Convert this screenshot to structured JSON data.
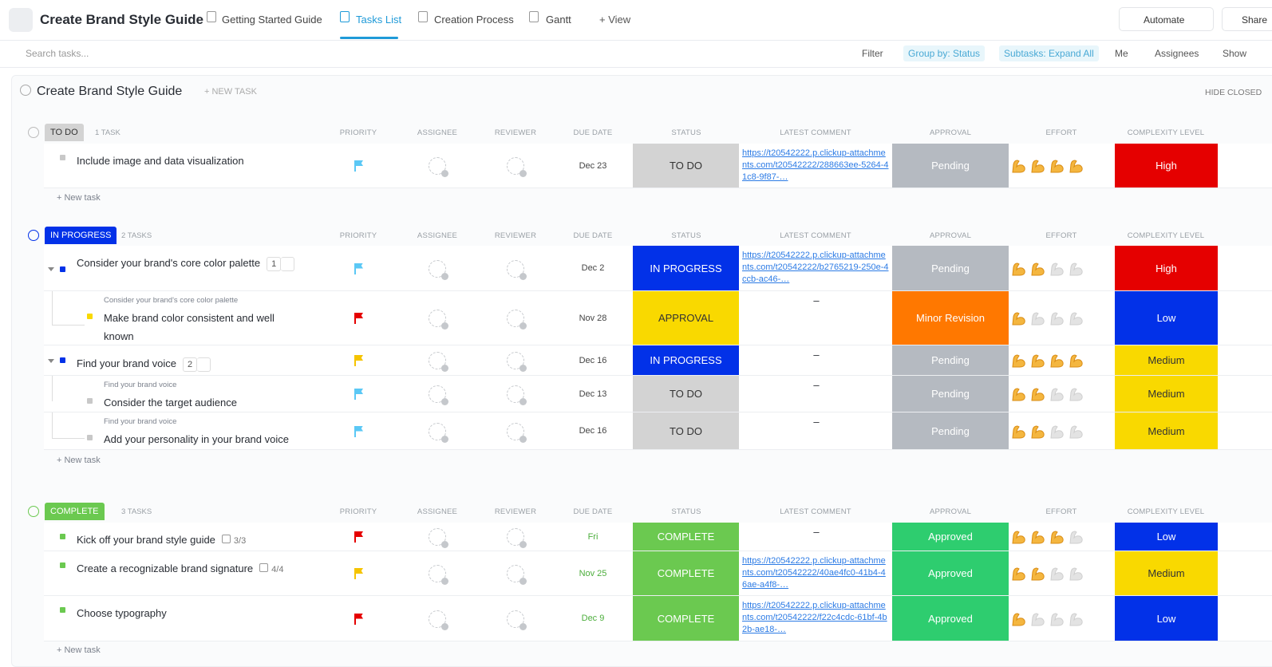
{
  "header": {
    "title": "Create Brand Style Guide",
    "tabs": [
      "Getting Started Guide",
      "Tasks List",
      "Creation Process",
      "Gantt"
    ],
    "add_view": "+ View",
    "automate": "Automate",
    "share": "Share"
  },
  "toolbar": {
    "search": "Search tasks...",
    "filter": "Filter",
    "group_by": "Group by: Status",
    "subtasks": "Subtasks: Expand All",
    "me": "Me",
    "assignees": "Assignees",
    "show": "Show"
  },
  "list": {
    "title": "Create Brand Style Guide",
    "new_task": "+ NEW TASK",
    "hide_closed": "HIDE CLOSED"
  },
  "columns": [
    "PRIORITY",
    "ASSIGNEE",
    "REVIEWER",
    "DUE DATE",
    "STATUS",
    "LATEST COMMENT",
    "APPROVAL",
    "EFFORT",
    "COMPLEXITY LEVEL"
  ],
  "groups": [
    {
      "status": "TO DO",
      "color": "#d3d3d3",
      "text_color": "#333333",
      "count": "1 TASK",
      "new_task": "+ New task",
      "tasks": [
        {
          "name": "Include image and data visualization",
          "flag": "#5bc8f5",
          "due": "Dec 23",
          "status": "TO DO",
          "status_color": "#d3d3d3",
          "status_text": "#333333",
          "comment": "https://t20542222.p.clickup-attachments.com/t20542222/288663ee-5264-41c8-9f87-…",
          "approval": "Pending",
          "approval_color": "#b5bac1",
          "effort": 4,
          "complexity": "High",
          "complexity_color": "#e50000"
        }
      ]
    },
    {
      "status": "IN PROGRESS",
      "color": "#0231e8",
      "text_color": "#ffffff",
      "count": "2 TASKS",
      "new_task": "+ New task",
      "tasks": [
        {
          "name": "Consider your brand's core color palette",
          "subtasks": 1,
          "flag": "#5bc8f5",
          "due": "Dec 2",
          "status": "IN PROGRESS",
          "status_color": "#0231e8",
          "status_text": "#ffffff",
          "comment": "https://t20542222.p.clickup-attachments.com/t20542222/b2765219-250e-4ccb-ac46-…",
          "approval": "Pending",
          "approval_color": "#b5bac1",
          "effort": 2,
          "complexity": "High",
          "complexity_color": "#e50000"
        },
        {
          "parent": "Consider your brand's core color palette",
          "name": "Make brand color consistent and well known",
          "flag": "#e50000",
          "due": "Nov 28",
          "status": "APPROVAL",
          "status_color": "#f9d900",
          "status_text": "#333333",
          "comment": "–",
          "approval": "Minor Revision",
          "approval_color": "#ff7800",
          "effort": 1,
          "complexity": "Low",
          "complexity_color": "#0231e8"
        },
        {
          "name": "Find your brand voice",
          "subtasks": 2,
          "flag": "#f5c400",
          "due": "Dec 16",
          "status": "IN PROGRESS",
          "status_color": "#0231e8",
          "status_text": "#ffffff",
          "comment": "–",
          "approval": "Pending",
          "approval_color": "#b5bac1",
          "effort": 4,
          "complexity": "Medium",
          "complexity_color": "#f9d900"
        },
        {
          "parent": "Find your brand voice",
          "name": "Consider the target audience",
          "flag": "#5bc8f5",
          "due": "Dec 13",
          "status": "TO DO",
          "status_color": "#d3d3d3",
          "status_text": "#333333",
          "comment": "–",
          "approval": "Pending",
          "approval_color": "#b5bac1",
          "effort": 2,
          "complexity": "Medium",
          "complexity_color": "#f9d900"
        },
        {
          "parent": "Find your brand voice",
          "name": "Add your personality in your brand voice",
          "flag": "#5bc8f5",
          "due": "Dec 16",
          "status": "TO DO",
          "status_color": "#d3d3d3",
          "status_text": "#333333",
          "comment": "–",
          "approval": "Pending",
          "approval_color": "#b5bac1",
          "effort": 2,
          "complexity": "Medium",
          "complexity_color": "#f9d900"
        }
      ]
    },
    {
      "status": "COMPLETE",
      "color": "#6bc950",
      "text_color": "#ffffff",
      "count": "3 TASKS",
      "new_task": "+ New task",
      "tasks": [
        {
          "name": "Kick off your brand style guide",
          "checklist": "3/3",
          "flag": "#e50000",
          "due": "Fri",
          "status": "COMPLETE",
          "status_color": "#6bc950",
          "status_text": "#ffffff",
          "comment": "–",
          "approval": "Approved",
          "approval_color": "#2ecd6f",
          "effort": 3,
          "complexity": "Low",
          "complexity_color": "#0231e8"
        },
        {
          "name": "Create a recognizable brand signature",
          "checklist": "4/4",
          "flag": "#f5c400",
          "due": "Nov 25",
          "status": "COMPLETE",
          "status_color": "#6bc950",
          "status_text": "#ffffff",
          "comment": "https://t20542222.p.clickup-attachments.com/t20542222/40ae4fc0-41b4-46ae-a4f8-…",
          "approval": "Approved",
          "approval_color": "#2ecd6f",
          "effort": 2,
          "complexity": "Medium",
          "complexity_color": "#f9d900"
        },
        {
          "name": "Choose typography",
          "flag": "#e50000",
          "due": "Dec 9",
          "status": "COMPLETE",
          "status_color": "#6bc950",
          "status_text": "#ffffff",
          "comment": "https://t20542222.p.clickup-attachments.com/t20542222/f22c4cdc-61bf-4b2b-ae18-…",
          "approval": "Approved",
          "approval_color": "#2ecd6f",
          "effort": 1,
          "complexity": "Low",
          "complexity_color": "#0231e8"
        }
      ]
    }
  ]
}
